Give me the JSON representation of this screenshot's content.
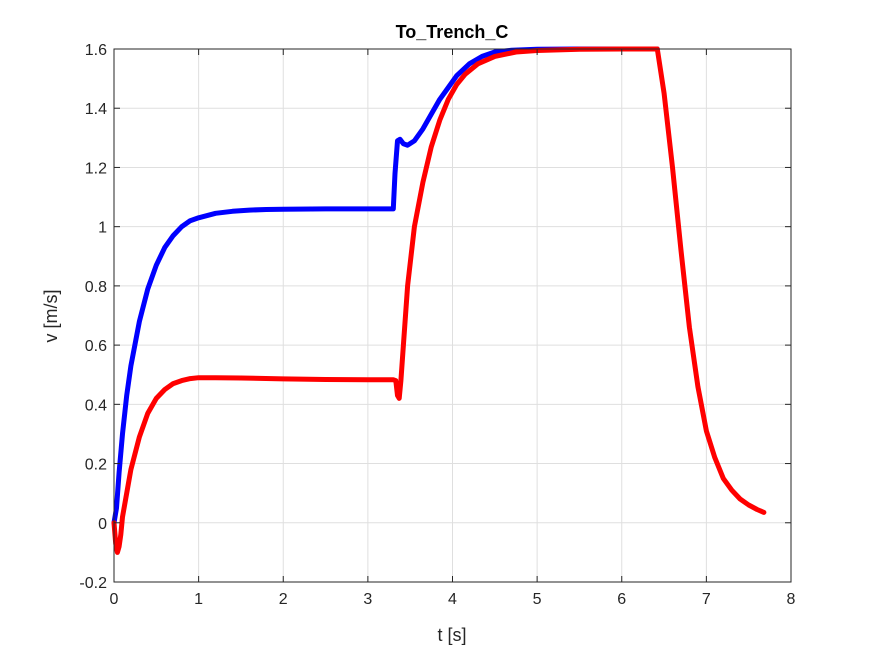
{
  "chart_data": {
    "type": "line",
    "title": "To_Trench_C",
    "xlabel": "t [s]",
    "ylabel": "v [m/s]",
    "xlim": [
      0,
      8
    ],
    "ylim": [
      -0.2,
      1.6
    ],
    "xticks": [
      0,
      1,
      2,
      3,
      4,
      5,
      6,
      7,
      8
    ],
    "yticks": [
      -0.2,
      0,
      0.2,
      0.4,
      0.6,
      0.8,
      1,
      1.2,
      1.4,
      1.6
    ],
    "xtick_labels": [
      "0",
      "1",
      "2",
      "3",
      "4",
      "5",
      "6",
      "7",
      "8"
    ],
    "ytick_labels": [
      "-0.2",
      "0",
      "0.2",
      "0.4",
      "0.6",
      "0.8",
      "1",
      "1.2",
      "1.4",
      "1.6"
    ],
    "grid": true,
    "box": true,
    "series": [
      {
        "color": "#0000ff",
        "x": [
          0.0,
          0.03,
          0.06,
          0.1,
          0.15,
          0.2,
          0.3,
          0.4,
          0.5,
          0.6,
          0.7,
          0.8,
          0.9,
          1.0,
          1.2,
          1.4,
          1.6,
          1.8,
          2.0,
          2.5,
          3.0,
          3.3,
          3.32,
          3.35,
          3.38,
          3.42,
          3.47,
          3.55,
          3.65,
          3.75,
          3.85,
          3.95,
          4.05,
          4.2,
          4.35,
          4.5,
          4.7,
          5.0,
          5.5,
          6.0,
          6.42
        ],
        "y": [
          0.0,
          0.05,
          0.17,
          0.3,
          0.43,
          0.53,
          0.68,
          0.79,
          0.87,
          0.93,
          0.97,
          1.0,
          1.02,
          1.03,
          1.045,
          1.052,
          1.056,
          1.058,
          1.059,
          1.06,
          1.06,
          1.06,
          1.18,
          1.29,
          1.295,
          1.28,
          1.275,
          1.29,
          1.33,
          1.38,
          1.43,
          1.47,
          1.51,
          1.55,
          1.575,
          1.59,
          1.596,
          1.599,
          1.6,
          1.6,
          1.6
        ]
      },
      {
        "color": "#ff0000",
        "x": [
          0.0,
          0.02,
          0.04,
          0.06,
          0.08,
          0.1,
          0.15,
          0.2,
          0.3,
          0.4,
          0.5,
          0.6,
          0.7,
          0.8,
          0.9,
          1.0,
          1.2,
          1.5,
          2.0,
          2.5,
          3.0,
          3.3,
          3.33,
          3.35,
          3.37,
          3.39,
          3.42,
          3.47,
          3.55,
          3.65,
          3.75,
          3.85,
          3.95,
          4.05,
          4.15,
          4.3,
          4.5,
          4.75,
          5.0,
          5.5,
          6.0,
          6.42,
          6.5,
          6.6,
          6.7,
          6.8,
          6.9,
          7.0,
          7.1,
          7.2,
          7.3,
          7.4,
          7.5,
          7.6,
          7.68
        ],
        "y": [
          0.0,
          -0.07,
          -0.1,
          -0.08,
          -0.04,
          0.02,
          0.1,
          0.18,
          0.29,
          0.37,
          0.42,
          0.45,
          0.47,
          0.48,
          0.487,
          0.49,
          0.49,
          0.489,
          0.486,
          0.484,
          0.483,
          0.483,
          0.48,
          0.43,
          0.42,
          0.48,
          0.6,
          0.8,
          1.0,
          1.15,
          1.27,
          1.36,
          1.43,
          1.48,
          1.515,
          1.55,
          1.575,
          1.59,
          1.595,
          1.599,
          1.6,
          1.6,
          1.45,
          1.2,
          0.92,
          0.66,
          0.46,
          0.31,
          0.22,
          0.15,
          0.11,
          0.08,
          0.06,
          0.045,
          0.035
        ]
      }
    ]
  }
}
